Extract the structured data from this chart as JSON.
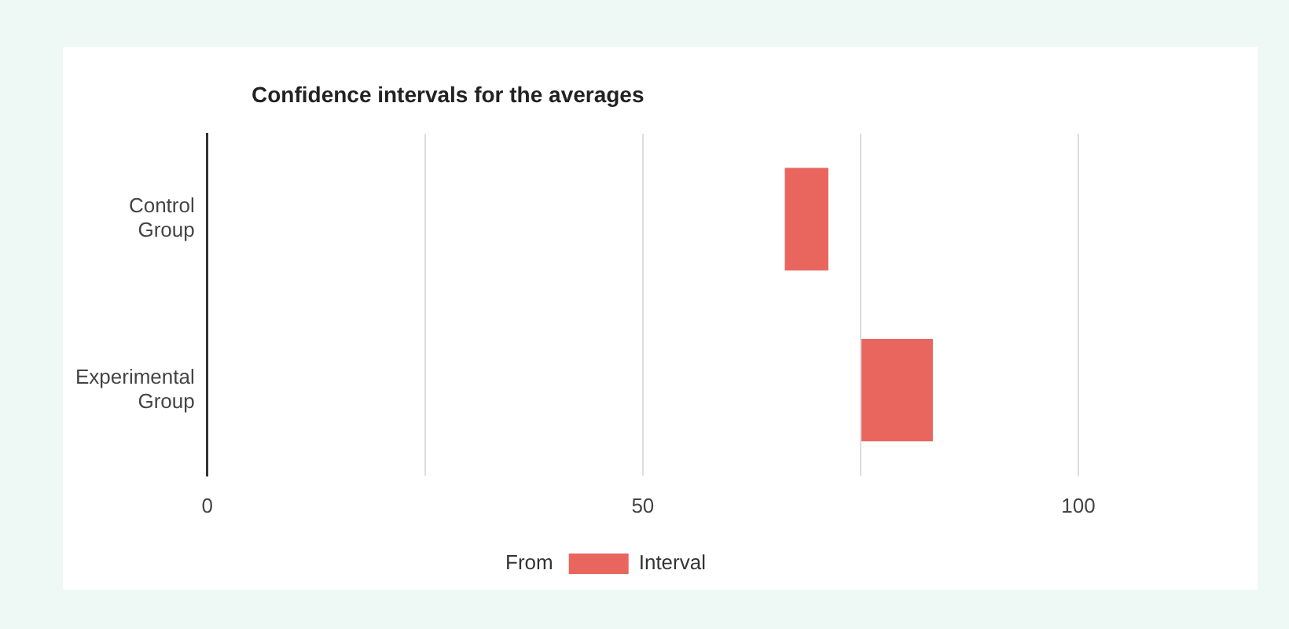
{
  "chart_data": {
    "type": "bar",
    "title": "Confidence intervals for the averages",
    "orientation": "horizontal",
    "categories": [
      "Control Group",
      "Experimental Group"
    ],
    "series": [
      {
        "name": "Interval",
        "color": "#e8665e",
        "values": [
          5,
          8.2
        ],
        "base": [
          66.3,
          75.1
        ]
      }
    ],
    "annotations": [
      "From"
    ],
    "xlim": [
      0,
      100
    ],
    "xticks": [
      0,
      {
        "value": 25,
        "label": null
      },
      50,
      {
        "value": 75,
        "label": null
      },
      100
    ],
    "grid": "x",
    "legend": "bottom"
  }
}
